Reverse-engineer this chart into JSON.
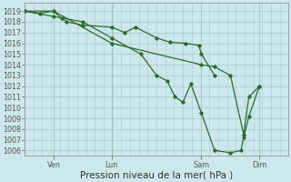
{
  "bg_color": "#cce8ec",
  "grid_color": "#a8c8cc",
  "line_color": "#2d6a2d",
  "marker_color": "#2d6a2d",
  "xlabel": "Pression niveau de la mer( hPa )",
  "xlabel_fontsize": 7.5,
  "ylim": [
    1005.5,
    1019.8
  ],
  "yticks": [
    1006,
    1007,
    1008,
    1009,
    1010,
    1011,
    1012,
    1013,
    1014,
    1015,
    1016,
    1017,
    1018,
    1019
  ],
  "tick_labels_fontsize": 5.8,
  "xlim": [
    0,
    100
  ],
  "x_tick_positions": [
    11,
    33,
    67,
    89
  ],
  "x_tick_labels": [
    "Ven",
    "Lun",
    "Sam",
    "Dim"
  ],
  "vlines": [
    11,
    33,
    67,
    89
  ],
  "hlines_minor_step": 0.5,
  "series": [
    {
      "x": [
        0,
        6,
        11,
        14,
        16,
        22,
        33,
        38,
        42,
        50,
        55,
        61,
        66,
        67,
        72
      ],
      "y": [
        1019.0,
        1018.8,
        1019.0,
        1018.3,
        1018.0,
        1017.7,
        1017.5,
        1017.0,
        1017.5,
        1016.5,
        1016.1,
        1016.0,
        1015.8,
        1015.0,
        1013.0
      ]
    },
    {
      "x": [
        0,
        11,
        22,
        33,
        44,
        50,
        54,
        57,
        60,
        63,
        67,
        72,
        78,
        82,
        83,
        85,
        89
      ],
      "y": [
        1019.0,
        1018.5,
        1018.0,
        1016.5,
        1015.0,
        1013.0,
        1012.5,
        1011.0,
        1010.5,
        1012.2,
        1009.5,
        1006.0,
        1005.8,
        1006.0,
        1007.2,
        1009.2,
        1012.0
      ]
    },
    {
      "x": [
        0,
        11,
        33,
        67,
        72,
        78,
        83,
        85,
        89
      ],
      "y": [
        1019.0,
        1019.0,
        1016.0,
        1014.0,
        1013.8,
        1013.0,
        1007.5,
        1011.0,
        1012.0
      ]
    }
  ]
}
